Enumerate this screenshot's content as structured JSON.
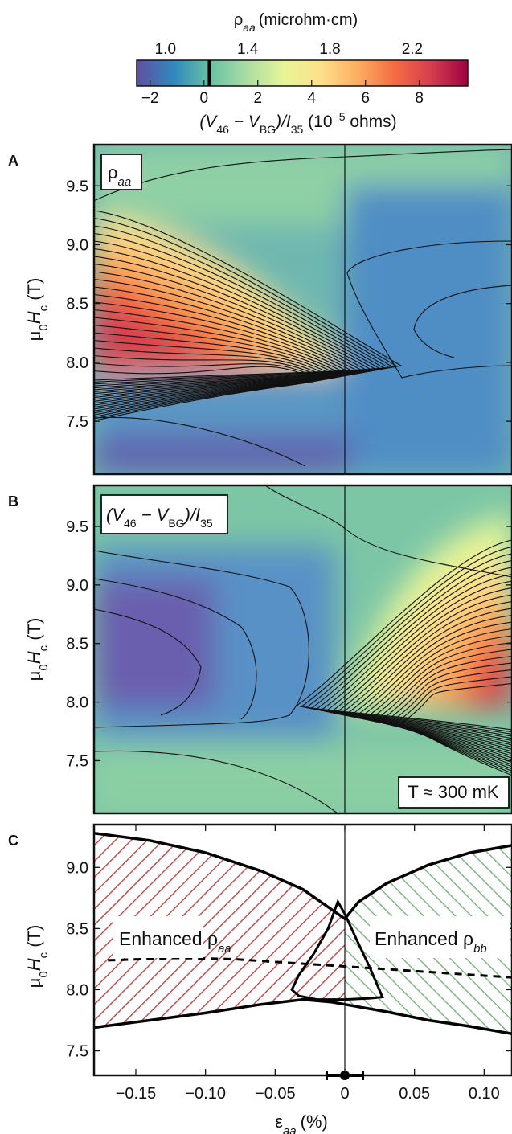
{
  "colorbar": {
    "top_title": "ρ",
    "top_title_sub": "aa",
    "top_title_unit": "(microhm·cm)",
    "top_ticks": [
      "1.0",
      "1.4",
      "1.8",
      "2.2"
    ],
    "top_tick_values": [
      1.0,
      1.4,
      1.8,
      2.2
    ],
    "bottom_ticks": [
      "−2",
      "0",
      "2",
      "4",
      "6",
      "8"
    ],
    "bottom_tick_values": [
      -2,
      0,
      2,
      4,
      6,
      8
    ],
    "bottom_range": [
      -2.5,
      9.8
    ],
    "top_range": [
      0.86,
      2.47
    ],
    "bottom_label_parts": [
      "(V",
      "46",
      " − V",
      "BG",
      ")/I",
      "35",
      "  (10",
      "−5",
      " ohms)"
    ],
    "marker_value": 0.2,
    "colors": [
      "#5e4fa2",
      "#3288bd",
      "#66c2a5",
      "#abdda4",
      "#e6f598",
      "#fee08b",
      "#fdae61",
      "#f46d43",
      "#d53e4f",
      "#9e0142"
    ]
  },
  "chart_data": [
    {
      "panel": "A",
      "type": "heatmap",
      "label": "ρ",
      "label_sub": "aa",
      "ylabel": "μ0Hc (T)",
      "yticks": [
        "7.5",
        "8.0",
        "8.5",
        "9.0",
        "9.5"
      ],
      "ytick_values": [
        7.5,
        8.0,
        8.5,
        9.0,
        9.5
      ],
      "ylim": [
        7.05,
        9.85
      ],
      "xlim": [
        -0.18,
        0.12
      ],
      "vline_x": 0
    },
    {
      "panel": "B",
      "type": "heatmap",
      "label_parts": [
        "(V",
        "46",
        " − V",
        "BG",
        ")/I",
        "35"
      ],
      "annotation": "T ≈ 300 mK",
      "ylabel": "μ0Hc (T)",
      "yticks": [
        "7.5",
        "8.0",
        "8.5",
        "9.0",
        "9.5"
      ],
      "ytick_values": [
        7.5,
        8.0,
        8.5,
        9.0,
        9.5
      ],
      "ylim": [
        7.05,
        9.85
      ],
      "xlim": [
        -0.18,
        0.12
      ],
      "vline_x": 0
    },
    {
      "panel": "C",
      "type": "area",
      "ylabel": "μ0Hc (T)",
      "xlabel": "ε",
      "xlabel_sub": "aa",
      "xlabel_unit": "(%)",
      "xticks": [
        "−0.15",
        "−0.10",
        "−0.05",
        "0",
        "0.05",
        "0.10"
      ],
      "xtick_values": [
        -0.15,
        -0.1,
        -0.05,
        0,
        0.05,
        0.1
      ],
      "yticks": [
        "7.5",
        "8.0",
        "8.5",
        "9.0"
      ],
      "ytick_values": [
        7.5,
        8.0,
        8.5,
        9.0
      ],
      "xlim": [
        -0.18,
        0.12
      ],
      "ylim": [
        7.3,
        9.35
      ],
      "region_labels": [
        {
          "text": "Enhanced ρ",
          "sub": "aa",
          "color": "#c0504d"
        },
        {
          "text": "Enhanced ρ",
          "sub": "bb",
          "color": "#6aaa6e"
        }
      ],
      "upper_boundary": {
        "x": [
          -0.18,
          -0.14,
          -0.1,
          -0.06,
          -0.03,
          -0.01,
          0,
          0.01,
          0.03,
          0.06,
          0.09,
          0.12
        ],
        "y": [
          9.28,
          9.22,
          9.12,
          8.97,
          8.82,
          8.66,
          8.58,
          8.72,
          8.87,
          9.02,
          9.12,
          9.18
        ]
      },
      "lower_boundary": {
        "x": [
          -0.18,
          -0.14,
          -0.1,
          -0.06,
          -0.03,
          -0.01,
          0,
          0.01,
          0.03,
          0.06,
          0.09,
          0.12
        ],
        "y": [
          7.69,
          7.75,
          7.81,
          7.88,
          7.92,
          7.9,
          7.88,
          7.86,
          7.82,
          7.75,
          7.7,
          7.64
        ]
      },
      "crossover_loop": {
        "x": [
          -0.005,
          0.0,
          0.008,
          0.018,
          0.027,
          0.018,
          0.0,
          -0.02,
          -0.033,
          -0.038,
          -0.033,
          -0.022,
          -0.012,
          -0.005
        ],
        "y": [
          8.72,
          8.62,
          8.42,
          8.18,
          7.94,
          7.93,
          7.92,
          7.92,
          7.95,
          8.0,
          8.12,
          8.3,
          8.5,
          8.72
        ]
      },
      "dashed_line": {
        "x": [
          -0.17,
          -0.12,
          -0.08,
          -0.04,
          0,
          0.04,
          0.08,
          0.12
        ],
        "y": [
          8.24,
          8.26,
          8.25,
          8.22,
          8.19,
          8.16,
          8.13,
          8.1
        ]
      },
      "error_bar": {
        "x": 0,
        "xerr_low": 0.013,
        "xerr_high": 0.013,
        "y": 7.3
      },
      "vline_x": 0
    }
  ]
}
